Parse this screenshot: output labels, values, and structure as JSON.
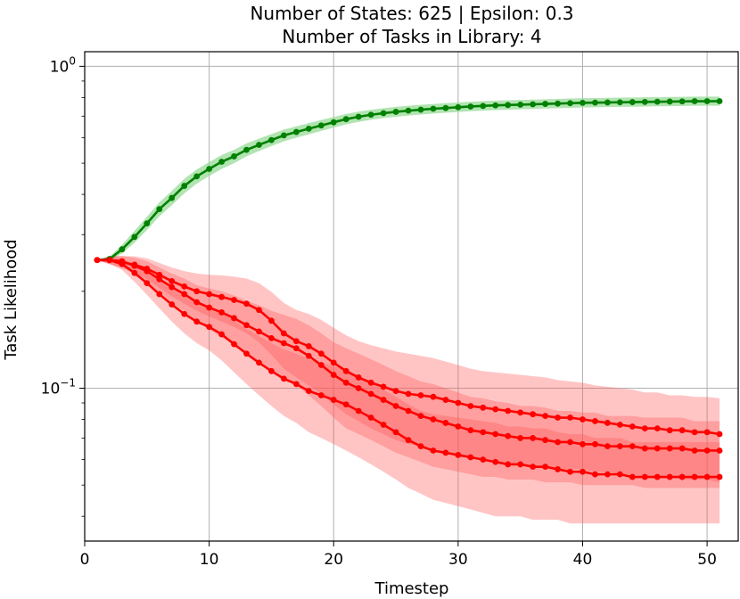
{
  "chart_data": {
    "type": "line",
    "title_line1": "Number of States: 625 | Epsilon: 0.3",
    "title_line2": "Number of Tasks in Library: 4",
    "xlabel": "Timestep",
    "ylabel": "Task Likelihood",
    "yscale": "log",
    "xlim": [
      0,
      52.5
    ],
    "ylim": [
      0.0335,
      1.11
    ],
    "grid": true,
    "x_ticks": [
      0,
      10,
      20,
      30,
      40,
      50
    ],
    "y_major_ticks": [
      {
        "value": 1.0,
        "base": "10",
        "exp": "0"
      },
      {
        "value": 0.1,
        "base": "10",
        "exp": "−1"
      }
    ],
    "y_minor_ticks": [
      0.04,
      0.05,
      0.06,
      0.07,
      0.08,
      0.09,
      0.2,
      0.3,
      0.4,
      0.5,
      0.6,
      0.7,
      0.8,
      0.9
    ],
    "x_start": 1,
    "series": [
      {
        "color": "#008000",
        "band_color": "#90d890",
        "band_opacity": 0.7,
        "values": [
          0.25,
          0.252,
          0.27,
          0.295,
          0.325,
          0.36,
          0.39,
          0.425,
          0.455,
          0.48,
          0.505,
          0.525,
          0.55,
          0.57,
          0.59,
          0.61,
          0.625,
          0.64,
          0.655,
          0.67,
          0.685,
          0.697,
          0.707,
          0.715,
          0.722,
          0.728,
          0.733,
          0.738,
          0.742,
          0.746,
          0.75,
          0.753,
          0.756,
          0.758,
          0.76,
          0.762,
          0.764,
          0.766,
          0.768,
          0.77,
          0.771,
          0.772,
          0.773,
          0.774,
          0.775,
          0.776,
          0.777,
          0.778,
          0.779,
          0.779,
          0.779
        ],
        "lower": [
          0.25,
          0.249,
          0.262,
          0.283,
          0.31,
          0.342,
          0.37,
          0.403,
          0.432,
          0.456,
          0.48,
          0.5,
          0.525,
          0.545,
          0.565,
          0.585,
          0.6,
          0.615,
          0.63,
          0.645,
          0.66,
          0.672,
          0.682,
          0.69,
          0.697,
          0.703,
          0.708,
          0.713,
          0.717,
          0.721,
          0.725,
          0.728,
          0.731,
          0.733,
          0.735,
          0.737,
          0.739,
          0.741,
          0.743,
          0.745,
          0.746,
          0.747,
          0.748,
          0.749,
          0.75,
          0.751,
          0.752,
          0.753,
          0.754,
          0.754,
          0.754
        ],
        "upper": [
          0.25,
          0.256,
          0.279,
          0.308,
          0.341,
          0.378,
          0.41,
          0.447,
          0.478,
          0.504,
          0.53,
          0.55,
          0.576,
          0.596,
          0.616,
          0.636,
          0.651,
          0.666,
          0.681,
          0.696,
          0.711,
          0.723,
          0.733,
          0.741,
          0.748,
          0.754,
          0.759,
          0.764,
          0.768,
          0.772,
          0.776,
          0.779,
          0.782,
          0.784,
          0.786,
          0.788,
          0.79,
          0.792,
          0.794,
          0.796,
          0.797,
          0.798,
          0.799,
          0.8,
          0.801,
          0.802,
          0.803,
          0.804,
          0.805,
          0.805,
          0.805
        ]
      },
      {
        "color": "#ff0000",
        "band_color": "#ff5a5a",
        "band_opacity": 0.35,
        "values": [
          0.25,
          0.25,
          0.246,
          0.242,
          0.235,
          0.225,
          0.215,
          0.207,
          0.2,
          0.196,
          0.192,
          0.188,
          0.183,
          0.175,
          0.162,
          0.148,
          0.14,
          0.135,
          0.128,
          0.12,
          0.113,
          0.108,
          0.104,
          0.101,
          0.098,
          0.096,
          0.095,
          0.094,
          0.092,
          0.09,
          0.088,
          0.087,
          0.086,
          0.085,
          0.084,
          0.083,
          0.082,
          0.081,
          0.081,
          0.08,
          0.079,
          0.078,
          0.077,
          0.076,
          0.075,
          0.075,
          0.074,
          0.074,
          0.073,
          0.073,
          0.072
        ],
        "lower": [
          0.25,
          0.243,
          0.236,
          0.228,
          0.218,
          0.205,
          0.193,
          0.183,
          0.174,
          0.167,
          0.161,
          0.155,
          0.148,
          0.139,
          0.127,
          0.115,
          0.108,
          0.102,
          0.096,
          0.089,
          0.083,
          0.079,
          0.075,
          0.072,
          0.069,
          0.067,
          0.066,
          0.065,
          0.063,
          0.062,
          0.061,
          0.06,
          0.059,
          0.058,
          0.058,
          0.057,
          0.057,
          0.056,
          0.056,
          0.056,
          0.055,
          0.055,
          0.054,
          0.054,
          0.053,
          0.053,
          0.053,
          0.052,
          0.052,
          0.052,
          0.051
        ],
        "upper": [
          0.25,
          0.257,
          0.257,
          0.257,
          0.253,
          0.245,
          0.237,
          0.231,
          0.227,
          0.225,
          0.224,
          0.222,
          0.219,
          0.212,
          0.199,
          0.184,
          0.175,
          0.17,
          0.163,
          0.154,
          0.146,
          0.14,
          0.136,
          0.133,
          0.13,
          0.128,
          0.126,
          0.124,
          0.121,
          0.118,
          0.115,
          0.113,
          0.112,
          0.111,
          0.11,
          0.109,
          0.108,
          0.106,
          0.105,
          0.104,
          0.102,
          0.101,
          0.1,
          0.099,
          0.097,
          0.097,
          0.095,
          0.095,
          0.094,
          0.094,
          0.093
        ]
      },
      {
        "color": "#ff0000",
        "band_color": "#ff5a5a",
        "band_opacity": 0.35,
        "values": [
          0.25,
          0.25,
          0.248,
          0.24,
          0.231,
          0.218,
          0.206,
          0.196,
          0.185,
          0.178,
          0.172,
          0.165,
          0.157,
          0.15,
          0.143,
          0.138,
          0.133,
          0.126,
          0.118,
          0.11,
          0.104,
          0.1,
          0.096,
          0.092,
          0.088,
          0.085,
          0.082,
          0.08,
          0.078,
          0.076,
          0.074,
          0.073,
          0.072,
          0.071,
          0.07,
          0.07,
          0.069,
          0.068,
          0.068,
          0.067,
          0.067,
          0.066,
          0.066,
          0.066,
          0.065,
          0.065,
          0.065,
          0.065,
          0.064,
          0.064,
          0.064
        ],
        "lower": [
          0.25,
          0.243,
          0.238,
          0.226,
          0.214,
          0.199,
          0.185,
          0.173,
          0.161,
          0.152,
          0.144,
          0.136,
          0.127,
          0.119,
          0.112,
          0.107,
          0.102,
          0.095,
          0.088,
          0.081,
          0.075,
          0.072,
          0.069,
          0.066,
          0.063,
          0.061,
          0.059,
          0.057,
          0.056,
          0.055,
          0.054,
          0.053,
          0.053,
          0.052,
          0.052,
          0.052,
          0.051,
          0.051,
          0.051,
          0.05,
          0.05,
          0.05,
          0.05,
          0.05,
          0.049,
          0.049,
          0.049,
          0.049,
          0.049,
          0.049,
          0.049
        ],
        "upper": [
          0.25,
          0.257,
          0.258,
          0.254,
          0.248,
          0.237,
          0.227,
          0.219,
          0.209,
          0.204,
          0.2,
          0.194,
          0.187,
          0.181,
          0.174,
          0.169,
          0.164,
          0.157,
          0.148,
          0.139,
          0.133,
          0.128,
          0.123,
          0.118,
          0.113,
          0.109,
          0.105,
          0.103,
          0.1,
          0.097,
          0.094,
          0.093,
          0.091,
          0.09,
          0.088,
          0.088,
          0.087,
          0.085,
          0.085,
          0.084,
          0.084,
          0.082,
          0.082,
          0.082,
          0.081,
          0.081,
          0.081,
          0.081,
          0.079,
          0.079,
          0.079
        ]
      },
      {
        "color": "#ff0000",
        "band_color": "#ff5a5a",
        "band_opacity": 0.35,
        "values": [
          0.25,
          0.25,
          0.243,
          0.228,
          0.212,
          0.196,
          0.182,
          0.17,
          0.161,
          0.155,
          0.147,
          0.137,
          0.128,
          0.12,
          0.113,
          0.107,
          0.103,
          0.098,
          0.095,
          0.092,
          0.089,
          0.085,
          0.081,
          0.077,
          0.073,
          0.069,
          0.066,
          0.064,
          0.063,
          0.062,
          0.061,
          0.06,
          0.059,
          0.058,
          0.058,
          0.057,
          0.057,
          0.056,
          0.055,
          0.055,
          0.054,
          0.054,
          0.054,
          0.053,
          0.053,
          0.053,
          0.053,
          0.053,
          0.053,
          0.053,
          0.053
        ],
        "lower": [
          0.25,
          0.243,
          0.233,
          0.214,
          0.195,
          0.177,
          0.161,
          0.148,
          0.138,
          0.131,
          0.122,
          0.112,
          0.103,
          0.095,
          0.088,
          0.082,
          0.078,
          0.073,
          0.07,
          0.067,
          0.064,
          0.061,
          0.058,
          0.055,
          0.052,
          0.049,
          0.047,
          0.045,
          0.044,
          0.043,
          0.042,
          0.041,
          0.04,
          0.04,
          0.04,
          0.039,
          0.039,
          0.039,
          0.038,
          0.038,
          0.038,
          0.038,
          0.038,
          0.038,
          0.038,
          0.038,
          0.038,
          0.038,
          0.038,
          0.038,
          0.038
        ],
        "upper": [
          0.25,
          0.257,
          0.253,
          0.242,
          0.229,
          0.215,
          0.203,
          0.192,
          0.184,
          0.179,
          0.172,
          0.162,
          0.153,
          0.145,
          0.138,
          0.132,
          0.128,
          0.123,
          0.12,
          0.117,
          0.114,
          0.109,
          0.104,
          0.099,
          0.094,
          0.089,
          0.085,
          0.083,
          0.082,
          0.081,
          0.08,
          0.079,
          0.078,
          0.076,
          0.076,
          0.075,
          0.075,
          0.073,
          0.072,
          0.072,
          0.07,
          0.07,
          0.07,
          0.068,
          0.068,
          0.068,
          0.068,
          0.068,
          0.068,
          0.068,
          0.068
        ]
      }
    ]
  }
}
